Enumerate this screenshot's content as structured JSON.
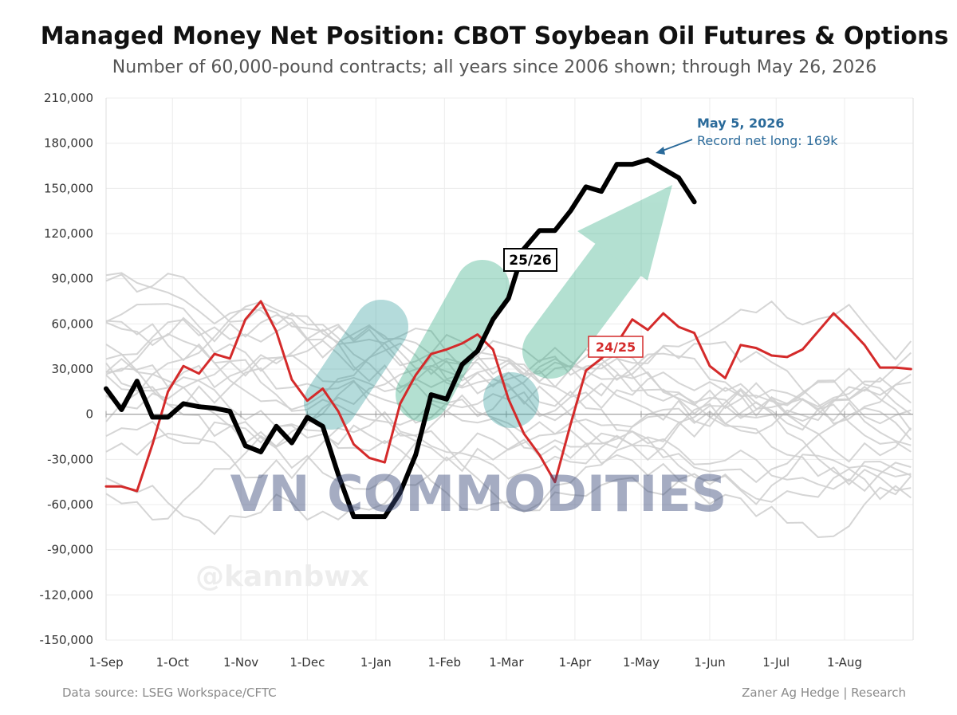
{
  "chart_data": {
    "type": "line",
    "title": "Managed Money Net Position: CBOT Soybean Oil Futures & Options",
    "subtitle": "Number of 60,000-pound contracts; all years since 2006 shown; through May 26, 2026",
    "xlabel": "",
    "ylabel": "",
    "ylim": [
      -150000,
      210000
    ],
    "y_ticks": [
      210000,
      180000,
      150000,
      120000,
      90000,
      60000,
      30000,
      0,
      -30000,
      -60000,
      -90000,
      -120000,
      -150000
    ],
    "y_tick_labels": [
      "210,000",
      "180,000",
      "150,000",
      "120,000",
      "90,000",
      "60,000",
      "30,000",
      "0",
      "-30,000",
      "-60,000",
      "-90,000",
      "-120,000",
      "-150,000"
    ],
    "x_unit": "weeks since 1-Sep",
    "xlim": [
      0,
      52.14
    ],
    "x_ticks": [
      0,
      4.29,
      8.71,
      13.0,
      17.43,
      21.86,
      25.86,
      30.29,
      34.57,
      39.0,
      43.29,
      47.71
    ],
    "x_tick_labels": [
      "1-Sep",
      "1-Oct",
      "1-Nov",
      "1-Dec",
      "1-Jan",
      "1-Feb",
      "1-Mar",
      "1-Apr",
      "1-May",
      "1-Jun",
      "1-Jul",
      "1-Aug"
    ],
    "grid": true,
    "series": [
      {
        "name": "25/26",
        "color": "#000000",
        "x": [
          0,
          1,
          2,
          3,
          4,
          5,
          6,
          7,
          8,
          9,
          10,
          11,
          12,
          13,
          14,
          15,
          16,
          17,
          18,
          19,
          20,
          21,
          22,
          23,
          24,
          25,
          26,
          27,
          28,
          29,
          30,
          31,
          32,
          33,
          34,
          35,
          36,
          37,
          38
        ],
        "y": [
          17000,
          3000,
          22000,
          -2000,
          -2000,
          7000,
          5000,
          4000,
          2000,
          -21000,
          -25000,
          -8000,
          -19000,
          -2000,
          -8000,
          -40000,
          -68000,
          -68000,
          -68000,
          -52000,
          -27000,
          13000,
          10000,
          33000,
          42000,
          63000,
          77000,
          110000,
          122000,
          122000,
          135000,
          151000,
          148000,
          166000,
          166000,
          169000,
          163000,
          157000,
          141000
        ]
      },
      {
        "name": "24/25",
        "color": "#d42a2a",
        "x": [
          0,
          1,
          2,
          3,
          4,
          5,
          6,
          7,
          8,
          9,
          10,
          11,
          12,
          13,
          14,
          15,
          16,
          17,
          18,
          19,
          20,
          21,
          22,
          23,
          24,
          25,
          26,
          27,
          28,
          29,
          30,
          31,
          32,
          33,
          34,
          35,
          36,
          37,
          38,
          39,
          40,
          41,
          42,
          43,
          44,
          45,
          46,
          47,
          48,
          49,
          50,
          51,
          52
        ],
        "y": [
          -48000,
          -48000,
          -51000,
          -20000,
          15000,
          32000,
          27000,
          40000,
          37000,
          63000,
          75000,
          55000,
          23000,
          9000,
          17000,
          2000,
          -20000,
          -29000,
          -32000,
          7000,
          26000,
          40000,
          43000,
          47000,
          53000,
          43000,
          10000,
          -13000,
          -27000,
          -45000,
          -7000,
          29000,
          37000,
          47000,
          63000,
          56000,
          67000,
          58000,
          54000,
          32000,
          24000,
          46000,
          44000,
          39000,
          38000,
          43000,
          55000,
          67000,
          57000,
          46000,
          31000,
          31000,
          30000
        ]
      }
    ],
    "background_series_note": "all years since 2006 shown",
    "annotations": [
      {
        "label": "25/26"
      },
      {
        "label": "24/25"
      },
      {
        "title": "May 5, 2026",
        "text": "Record net long: 169k"
      }
    ],
    "source": "Data source: LSEG Workspace/CFTC",
    "credit": "Zaner Ag Hedge | Research",
    "watermarks": [
      "VN COMMODITIES",
      "@kannbwx"
    ]
  },
  "colors": {
    "current_year": "#000000",
    "prior_year": "#d42a2a",
    "history": "#d0d0d0",
    "annotation": "#2a6a9a",
    "watermark_logo": "#5bbf95"
  }
}
